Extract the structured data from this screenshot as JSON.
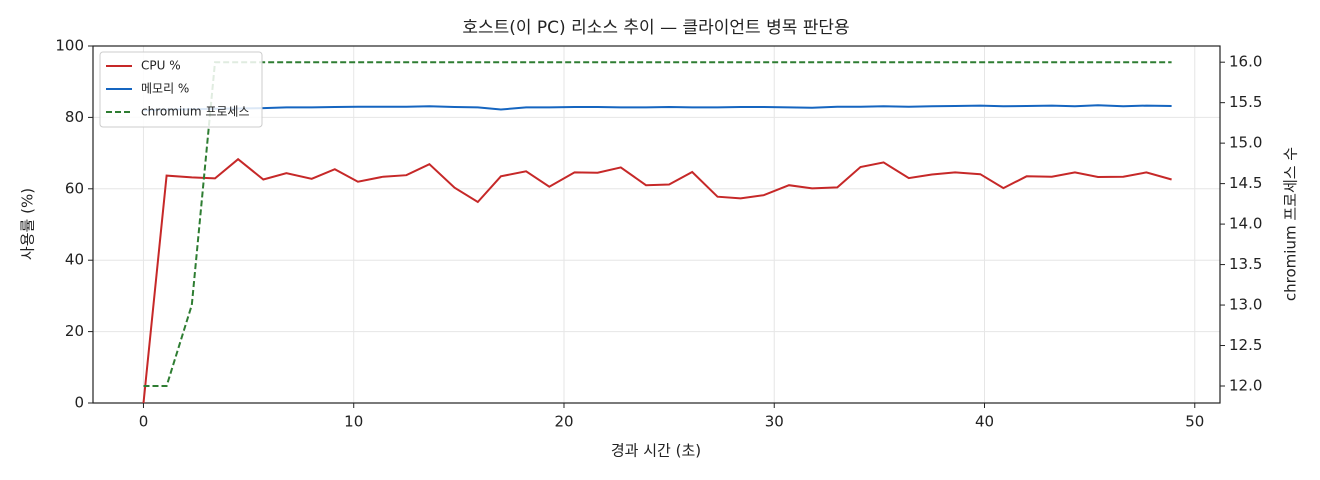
{
  "chart_data": {
    "type": "line",
    "title": "호스트(이 PC) 리소스 추이 — 클라이언트 병목 판단용",
    "x_label": "경과 시간 (초)",
    "y_label": "사용률 (%)",
    "y2_label": "chromium 프로세스 수",
    "x": [
      0,
      1.1,
      2.3,
      3.4,
      4.5,
      5.7,
      6.8,
      8.0,
      9.1,
      10.2,
      11.4,
      12.5,
      13.6,
      14.8,
      15.9,
      17.0,
      18.2,
      19.3,
      20.5,
      21.6,
      22.7,
      23.9,
      25.0,
      26.1,
      27.3,
      28.4,
      29.5,
      30.7,
      31.8,
      33.0,
      34.1,
      35.2,
      36.4,
      37.5,
      38.6,
      39.8,
      40.9,
      42.0,
      43.2,
      44.3,
      45.4,
      46.6,
      47.7,
      48.9
    ],
    "series": [
      {
        "name": "CPU %",
        "color": "#c62828",
        "dash": false,
        "values": [
          0,
          63.7,
          63.2,
          62.9,
          68.3,
          62.6,
          64.4,
          62.8,
          65.5,
          62.0,
          63.4,
          63.8,
          66.9,
          60.3,
          56.3,
          63.5,
          64.9,
          60.6,
          64.6,
          64.5,
          66.0,
          61.0,
          61.2,
          64.7,
          57.8,
          57.3,
          58.2,
          61.0,
          60.1,
          60.4,
          66.1,
          67.4,
          63.0,
          64.0,
          64.6,
          64.1,
          60.2,
          63.5,
          63.4,
          64.6,
          63.3,
          63.4,
          64.6,
          62.6
        ]
      },
      {
        "name": "메모리 %",
        "color": "#1565c0",
        "dash": false,
        "values": [
          82.0,
          82.2,
          82.3,
          82.4,
          82.5,
          82.6,
          82.8,
          82.8,
          82.9,
          83.0,
          83.0,
          83.0,
          83.1,
          82.9,
          82.8,
          82.2,
          82.8,
          82.8,
          82.9,
          82.9,
          82.8,
          82.8,
          82.9,
          82.8,
          82.8,
          82.9,
          82.9,
          82.8,
          82.7,
          83.0,
          83.0,
          83.1,
          83.0,
          83.1,
          83.2,
          83.3,
          83.1,
          83.2,
          83.3,
          83.1,
          83.4,
          83.1,
          83.3,
          83.2
        ]
      },
      {
        "name": "chromium 프로세스",
        "color": "#2e7d32",
        "dash": true,
        "axis": "y2",
        "values": [
          12,
          12,
          13,
          16,
          16,
          16,
          16,
          16,
          16,
          16,
          16,
          16,
          16,
          16,
          16,
          16,
          16,
          16,
          16,
          16,
          16,
          16,
          16,
          16,
          16,
          16,
          16,
          16,
          16,
          16,
          16,
          16,
          16,
          16,
          16,
          16,
          16,
          16,
          16,
          16,
          16,
          16,
          16,
          16
        ]
      }
    ],
    "xlim": [
      -2.4,
      51.2
    ],
    "xticks": [
      0,
      10,
      20,
      30,
      40,
      50
    ],
    "ylim": [
      0,
      100
    ],
    "yticks": [
      0,
      20,
      40,
      60,
      80,
      100
    ],
    "y2lim": [
      11.79,
      16.2
    ],
    "y2ticks": [
      {
        "value": 12,
        "label": "12.0"
      },
      {
        "value": 12.5,
        "label": "12.5"
      },
      {
        "value": 13,
        "label": "13.0"
      },
      {
        "value": 13.5,
        "label": "13.5"
      },
      {
        "value": 14,
        "label": "14.0"
      },
      {
        "value": 14.5,
        "label": "14.5"
      },
      {
        "value": 15,
        "label": "15.0"
      },
      {
        "value": 15.5,
        "label": "15.5"
      },
      {
        "value": 16,
        "label": "16.0"
      }
    ],
    "grid": true,
    "legend": "upper-left"
  }
}
